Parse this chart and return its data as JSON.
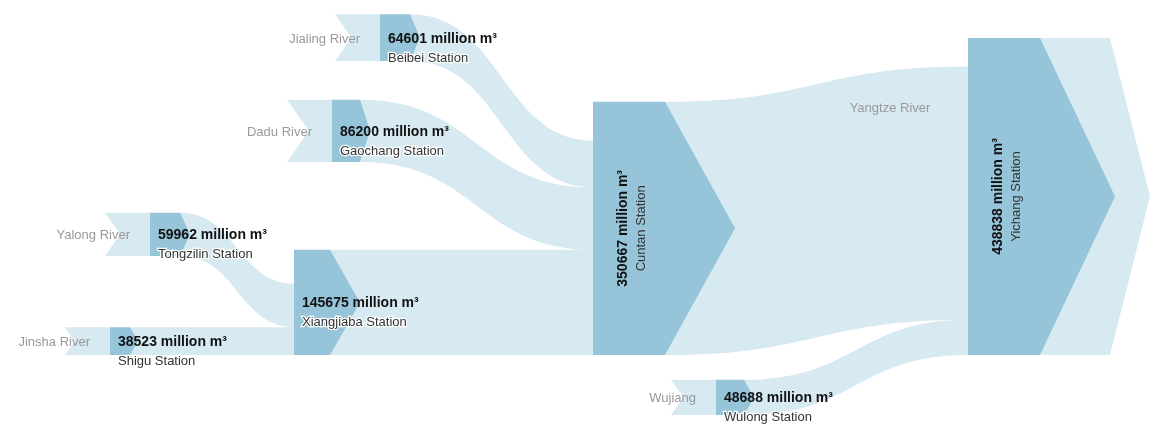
{
  "chart_data": {
    "type": "other",
    "categories": [
      "Shigu Station",
      "Tongzilin Station",
      "Gaochang Station",
      "Beibei Station",
      "Xiangjiaba Station",
      "Cuntan Station",
      "Wulong Station",
      "Yichang Station"
    ],
    "values": [
      38523,
      59962,
      86200,
      64601,
      145675,
      350667,
      48688,
      438838
    ],
    "value_labels": [
      "38523 million m³",
      "59962 million m³",
      "86200 million m³",
      "64601 million m³",
      "145675 million m³",
      "350667 million m³",
      "48688 million m³",
      "438838 million m³"
    ],
    "color": "#96c4d9",
    "annotations": [
      "Jialing River",
      "Dadu River",
      "Yalong River",
      "Jinsha River",
      "Wujiang",
      "Yangtze River"
    ]
  }
}
